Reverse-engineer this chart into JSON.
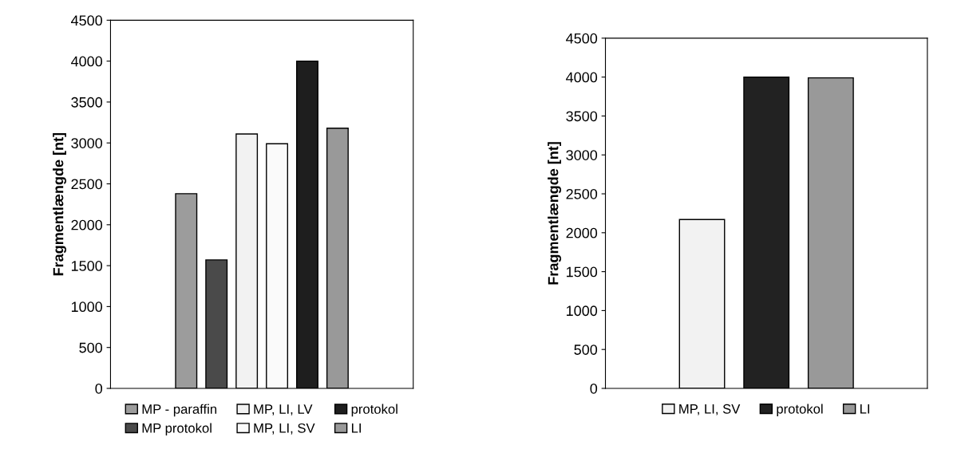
{
  "chart_data": [
    {
      "type": "bar",
      "ylabel": "Fragmentlængde [nt]",
      "categories": [
        null
      ],
      "ylim": [
        0,
        4500
      ],
      "yticks": [
        0,
        500,
        1000,
        1500,
        2000,
        2500,
        3000,
        3500,
        4000,
        4500
      ],
      "grid": false,
      "legend": "bottom",
      "series": [
        {
          "name": "MP - paraffin",
          "color": "#9c9c9c",
          "values": [
            2380
          ]
        },
        {
          "name": "MP protokol",
          "color": "#4a4a4a",
          "values": [
            1570
          ]
        },
        {
          "name": "MP, LI, LV",
          "color": "#f2f2f2",
          "values": [
            3110
          ]
        },
        {
          "name": "MP, LI, SV",
          "color": "#fafafa",
          "values": [
            2990
          ]
        },
        {
          "name": "protokol",
          "color": "#1e1e1e",
          "values": [
            4000
          ]
        },
        {
          "name": "LI",
          "color": "#999999",
          "values": [
            3180
          ]
        }
      ]
    },
    {
      "type": "bar",
      "ylabel": "Fragmentlængde [nt]",
      "categories": [
        null
      ],
      "ylim": [
        0,
        4500
      ],
      "yticks": [
        0,
        500,
        1000,
        1500,
        2000,
        2500,
        3000,
        3500,
        4000,
        4500
      ],
      "grid": false,
      "legend": "bottom",
      "series": [
        {
          "name": "MP, LI, SV",
          "color": "#f2f2f2",
          "values": [
            2170
          ]
        },
        {
          "name": "protokol",
          "color": "#222222",
          "values": [
            4000
          ]
        },
        {
          "name": "LI",
          "color": "#999999",
          "values": [
            3990
          ]
        }
      ]
    }
  ]
}
